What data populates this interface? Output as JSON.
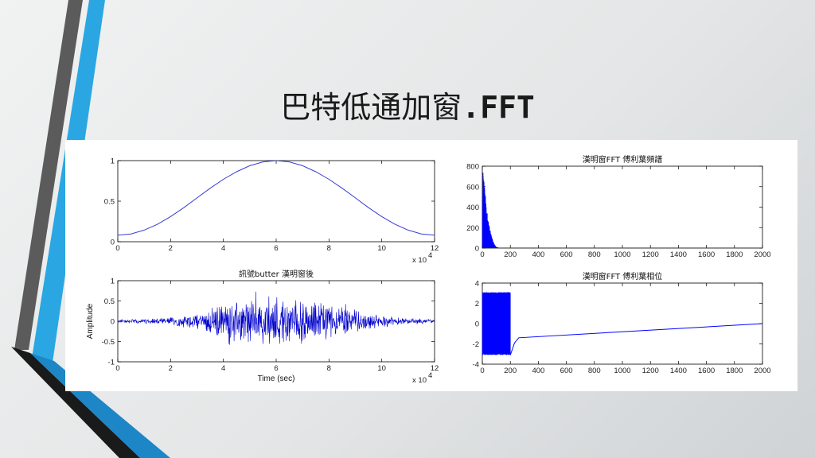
{
  "slide": {
    "title_cjk": "巴特低通加窗",
    "title_ascii": ".FFT",
    "accent_colors": [
      "#5b5b5b",
      "#2aa7e2",
      "#1a1a1a",
      "#1d86c6"
    ]
  },
  "chart_data": [
    {
      "id": "window",
      "type": "line",
      "title": "",
      "xlabel": "",
      "ylabel": "",
      "xlim": [
        0,
        12
      ],
      "ylim": [
        0,
        1
      ],
      "xticks": [
        0,
        2,
        4,
        6,
        8,
        10,
        12
      ],
      "xtick_labels": [
        "0",
        "2",
        "4",
        "6",
        "8",
        "10",
        "12"
      ],
      "yticks": [
        0,
        0.5,
        1
      ],
      "ytick_labels": [
        "0",
        "0.5",
        "1"
      ],
      "x_multiplier": "x 10",
      "x_multiplier_exp": "4",
      "series": [
        {
          "color": "#3b3bd6",
          "x": [
            0,
            0.5,
            1,
            1.5,
            2,
            2.5,
            3,
            3.5,
            4,
            4.5,
            5,
            5.5,
            6,
            6.5,
            7,
            7.5,
            8,
            8.5,
            9,
            9.5,
            10,
            10.5,
            11,
            11.5,
            12
          ],
          "y": [
            0.08,
            0.096,
            0.143,
            0.215,
            0.31,
            0.42,
            0.54,
            0.66,
            0.77,
            0.863,
            0.937,
            0.984,
            1.0,
            0.984,
            0.937,
            0.863,
            0.77,
            0.66,
            0.54,
            0.42,
            0.31,
            0.215,
            0.143,
            0.096,
            0.08
          ]
        }
      ]
    },
    {
      "id": "fft-magnitude",
      "type": "line",
      "title": "漢明窗FFT 傅利葉頻譜",
      "xlabel": "",
      "ylabel": "",
      "xlim": [
        0,
        2000
      ],
      "ylim": [
        0,
        800
      ],
      "xticks": [
        0,
        200,
        400,
        600,
        800,
        1000,
        1200,
        1400,
        1600,
        1800,
        2000
      ],
      "xtick_labels": [
        "0",
        "200",
        "400",
        "600",
        "800",
        "1000",
        "1200",
        "1400",
        "1600",
        "1800",
        "2000"
      ],
      "yticks": [
        0,
        200,
        400,
        600,
        800
      ],
      "ytick_labels": [
        "0",
        "200",
        "400",
        "600",
        "800"
      ],
      "series": [
        {
          "color": "#0000ff",
          "x": [
            0,
            5,
            10,
            15,
            20,
            25,
            30,
            40,
            50,
            60,
            70,
            80,
            90,
            100,
            200,
            2000
          ],
          "y": [
            0,
            780,
            720,
            640,
            560,
            470,
            400,
            300,
            220,
            150,
            100,
            60,
            30,
            10,
            2,
            0
          ]
        }
      ]
    },
    {
      "id": "signal",
      "type": "line",
      "title": "訊號butter 漢明窗後",
      "xlabel": "Time (sec)",
      "ylabel": "Amplitude",
      "xlim": [
        0,
        12
      ],
      "ylim": [
        -1,
        1
      ],
      "xticks": [
        0,
        2,
        4,
        6,
        8,
        10,
        12
      ],
      "xtick_labels": [
        "0",
        "2",
        "4",
        "6",
        "8",
        "10",
        "12"
      ],
      "yticks": [
        -1,
        -0.5,
        0,
        0.5,
        1
      ],
      "ytick_labels": [
        "-1",
        "-0.5",
        "0",
        "0.5",
        "1"
      ],
      "x_multiplier": "x 10",
      "x_multiplier_exp": "4",
      "series": [
        {
          "color": "#0000cc",
          "x": [
            0,
            1,
            2,
            3,
            4,
            5,
            6,
            7,
            8,
            9,
            10,
            11,
            12
          ],
          "y_envelope": [
            0.05,
            0.07,
            0.12,
            0.22,
            0.5,
            0.62,
            0.7,
            0.62,
            0.5,
            0.3,
            0.15,
            0.08,
            0.05
          ]
        }
      ]
    },
    {
      "id": "fft-phase",
      "type": "line",
      "title": "漢明窗FFT 傅利葉相位",
      "xlabel": "",
      "ylabel": "",
      "xlim": [
        0,
        2000
      ],
      "ylim": [
        -4,
        4
      ],
      "xticks": [
        0,
        200,
        400,
        600,
        800,
        1000,
        1200,
        1400,
        1600,
        1800,
        2000
      ],
      "xtick_labels": [
        "0",
        "200",
        "400",
        "600",
        "800",
        "1000",
        "1200",
        "1400",
        "1600",
        "1800",
        "2000"
      ],
      "yticks": [
        -4,
        -2,
        0,
        2,
        4
      ],
      "ytick_labels": [
        "-4",
        "-2",
        "0",
        "2",
        "4"
      ],
      "series": [
        {
          "color": "#0000ff",
          "x": [
            0,
            200,
            230,
            260,
            2000
          ],
          "y": [
            3.1,
            -3.1,
            -1.9,
            -1.4,
            0.0
          ]
        }
      ]
    }
  ]
}
